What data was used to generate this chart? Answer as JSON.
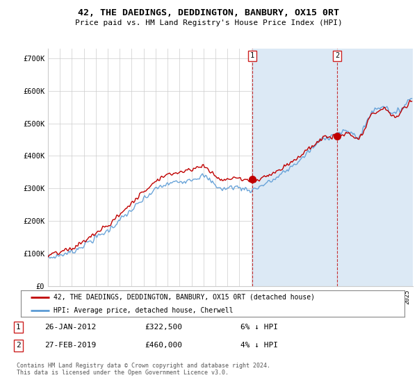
{
  "title": "42, THE DAEDINGS, DEDDINGTON, BANBURY, OX15 0RT",
  "subtitle": "Price paid vs. HM Land Registry's House Price Index (HPI)",
  "ylim": [
    0,
    730000
  ],
  "yticks": [
    0,
    100000,
    200000,
    300000,
    400000,
    500000,
    600000,
    700000
  ],
  "ytick_labels": [
    "£0",
    "£100K",
    "£200K",
    "£300K",
    "£400K",
    "£500K",
    "£600K",
    "£700K"
  ],
  "sale1_date": 2012.08,
  "sale1_price": 322500,
  "sale1_label": "1",
  "sale1_date_str": "26-JAN-2012",
  "sale1_price_str": "£322,500",
  "sale1_note": "6% ↓ HPI",
  "sale2_date": 2019.17,
  "sale2_price": 460000,
  "sale2_label": "2",
  "sale2_date_str": "27-FEB-2019",
  "sale2_price_str": "£460,000",
  "sale2_note": "4% ↓ HPI",
  "legend_property": "42, THE DAEDINGS, DEDDINGTON, BANBURY, OX15 0RT (detached house)",
  "legend_hpi": "HPI: Average price, detached house, Cherwell",
  "footer": "Contains HM Land Registry data © Crown copyright and database right 2024.\nThis data is licensed under the Open Government Licence v3.0.",
  "hpi_color": "#5b9bd5",
  "sale_color": "#c00000",
  "vline_color": "#c00000",
  "plot_bg": "#ffffff",
  "grid_color": "#cccccc",
  "shade_color": "#dce9f5",
  "xlim_start": 1995.0,
  "xlim_end": 2025.5
}
